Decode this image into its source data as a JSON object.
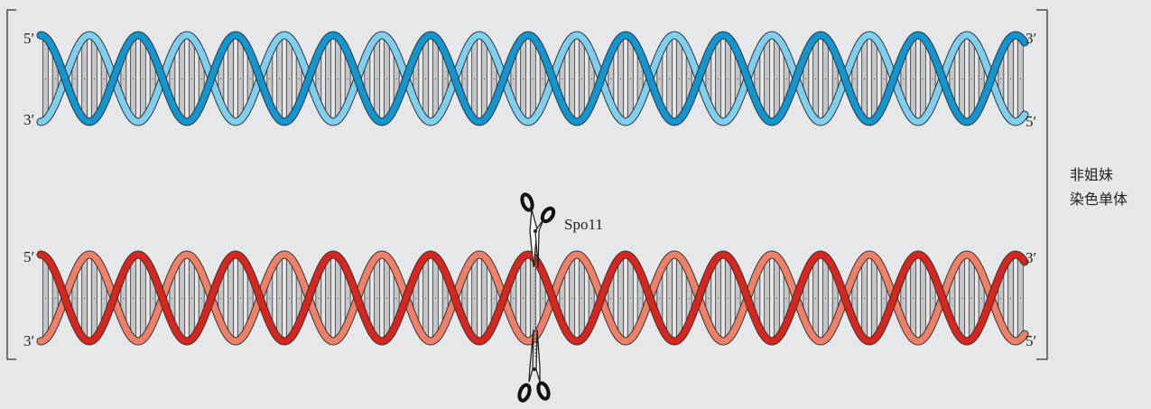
{
  "helix_top": {
    "left_top_end": "5′",
    "left_bottom_end": "3′",
    "right_top_end": "3′",
    "right_bottom_end": "5′",
    "colors": {
      "dark": "#1296d2",
      "light": "#7fcff0"
    }
  },
  "helix_bottom": {
    "left_top_end": "5′",
    "left_bottom_end": "3′",
    "right_top_end": "3′",
    "right_bottom_end": "5′",
    "colors": {
      "dark": "#d8261e",
      "light": "#f08068"
    }
  },
  "enzyme": {
    "label": "Spo11",
    "icon": "scissors-icon"
  },
  "bracket_label": {
    "line1": "非姐妹",
    "line2": "染色单体"
  },
  "rung_color": "#c4c6c9"
}
